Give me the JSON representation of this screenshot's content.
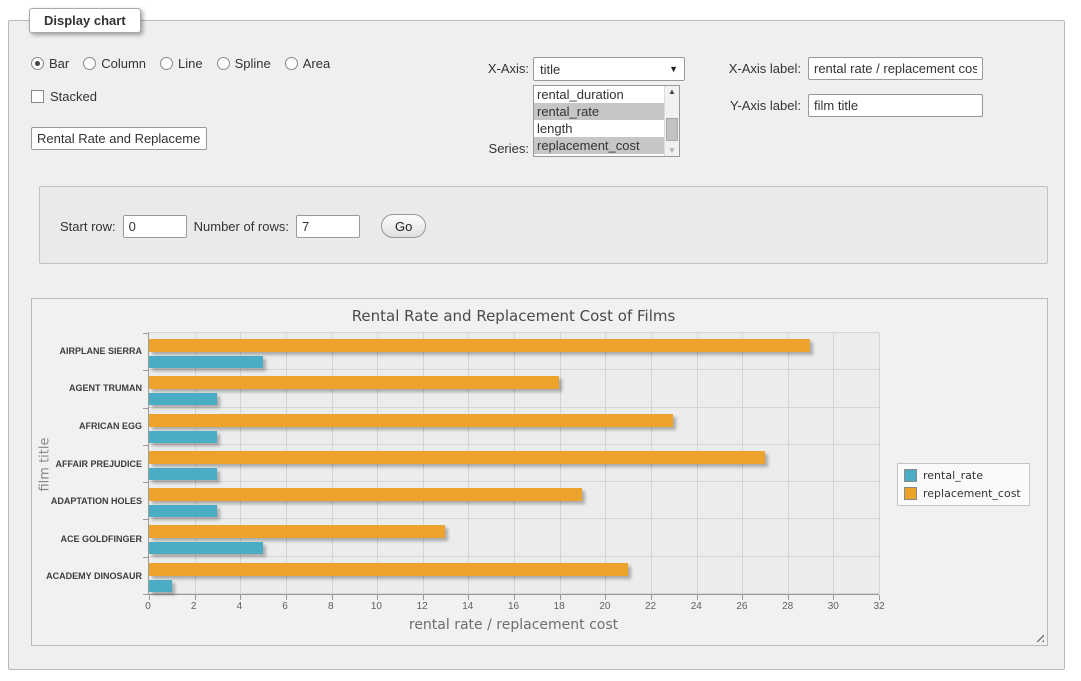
{
  "form": {
    "legend": "Display chart",
    "chart_type": {
      "options": [
        {
          "label": "Bar",
          "checked": true
        },
        {
          "label": "Column",
          "checked": false
        },
        {
          "label": "Line",
          "checked": false
        },
        {
          "label": "Spline",
          "checked": false
        },
        {
          "label": "Area",
          "checked": false
        }
      ]
    },
    "stacked": {
      "label": "Stacked",
      "checked": false
    },
    "chart_title_input": {
      "value": "Rental Rate and Replacement Cost of Films"
    },
    "x_axis": {
      "label": "X-Axis:",
      "selected": "title"
    },
    "series": {
      "label": "Series:",
      "options": [
        {
          "label": "rental_duration",
          "selected": false
        },
        {
          "label": "rental_rate",
          "selected": true
        },
        {
          "label": "length",
          "selected": false
        },
        {
          "label": "replacement_cost",
          "selected": true
        }
      ]
    },
    "x_axis_label_field": {
      "label": "X-Axis label:",
      "value": "rental rate / replacement cost"
    },
    "y_axis_label_field": {
      "label": "Y-Axis label:",
      "value": "film title"
    },
    "rows_panel": {
      "start_row_label": "Start row:",
      "start_row_value": "0",
      "number_of_rows_label": "Number of rows:",
      "number_of_rows_value": "7",
      "go_label": "Go"
    }
  },
  "chart_data": {
    "type": "bar",
    "orientation": "horizontal",
    "title": "Rental Rate and Replacement Cost of Films",
    "xlabel": "rental rate / replacement cost",
    "ylabel": "film title",
    "categories": [
      "AIRPLANE SIERRA",
      "AGENT TRUMAN",
      "AFRICAN EGG",
      "AFFAIR PREJUDICE",
      "ADAPTATION HOLES",
      "ACE GOLDFINGER",
      "ACADEMY DINOSAUR"
    ],
    "series": [
      {
        "name": "rental_rate",
        "color": "#4badc4",
        "values": [
          4.99,
          2.99,
          2.99,
          2.99,
          2.99,
          4.99,
          0.99
        ]
      },
      {
        "name": "replacement_cost",
        "color": "#eba32c",
        "values": [
          28.99,
          17.99,
          22.99,
          26.99,
          18.99,
          12.99,
          20.99
        ]
      }
    ],
    "xlim": [
      0,
      32
    ],
    "xtick_step": 2,
    "grid": true,
    "legend_position": "right",
    "plot_bg": "#ececec",
    "gridline_color": "#d4d4d4"
  }
}
